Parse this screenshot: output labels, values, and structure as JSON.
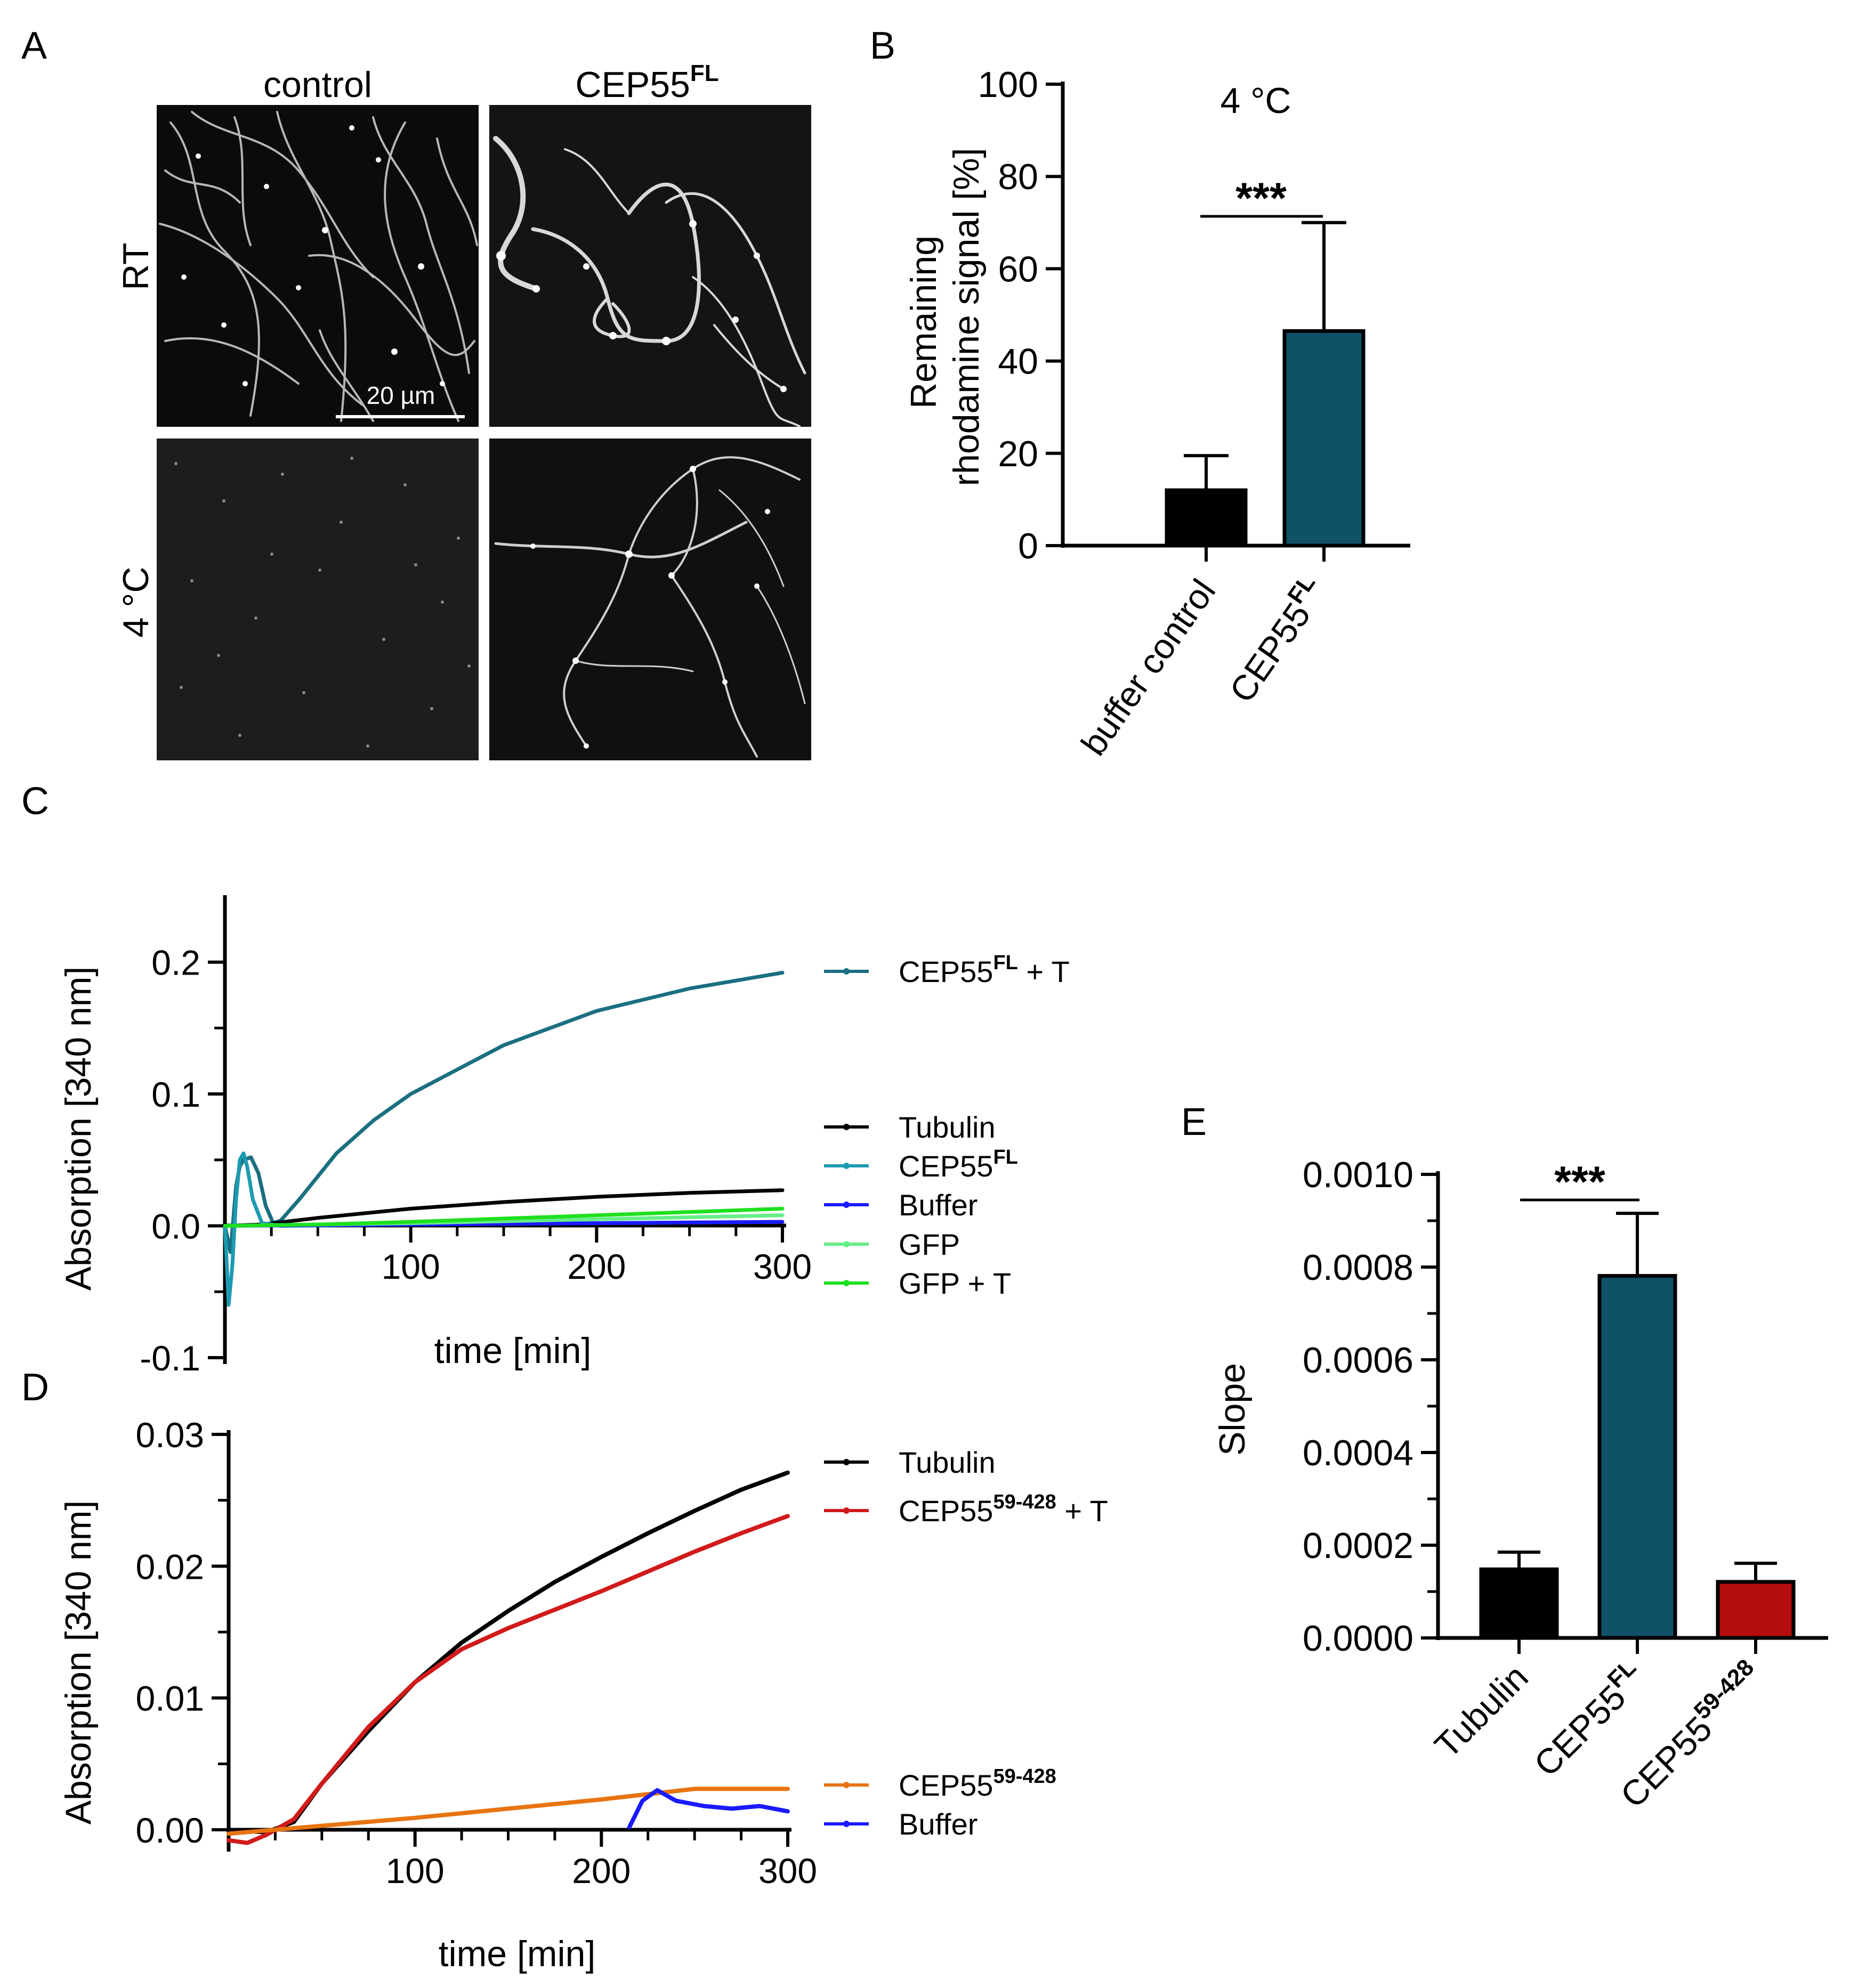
{
  "panels": {
    "A": {
      "letter": "A",
      "col_headers": [
        {
          "text": "control",
          "sup": ""
        },
        {
          "text": "CEP55",
          "sup": "FL"
        }
      ],
      "row_headers": [
        "RT",
        "4 °C"
      ],
      "scale_bar_label": "20 µm"
    },
    "B": {
      "letter": "B"
    },
    "C": {
      "letter": "C"
    },
    "D": {
      "letter": "D"
    },
    "E": {
      "letter": "E"
    }
  },
  "colors": {
    "teal": "#0f5166",
    "teal_line": "#1a6f80",
    "cyan_line": "#1c9bb0",
    "black": "#000000",
    "blue": "#1a1aff",
    "light_green": "#66ee88",
    "green": "#1fe01f",
    "red": "#d11a1a",
    "dark_red": "#b30d0d",
    "orange": "#e87410"
  },
  "chart_data": [
    {
      "id": "B",
      "type": "bar",
      "annotation": "4 °C",
      "ylabel": "Remaining rhodamine signal [%]",
      "ylabel_lines": [
        "Remaining",
        "rhodamine signal [%]"
      ],
      "ylim": [
        0,
        100
      ],
      "yticks": [
        "0",
        "20",
        "40",
        "60",
        "80",
        "100"
      ],
      "categories": [
        {
          "text": "buffer control",
          "sup": ""
        },
        {
          "text": "CEP55",
          "sup": "FL"
        }
      ],
      "values": [
        12,
        46.5
      ],
      "errors": [
        7.5,
        23.5
      ],
      "bar_colors": [
        "#000000",
        "#0f5166"
      ],
      "significance": "***"
    },
    {
      "id": "C",
      "type": "line",
      "xlabel": "time [min]",
      "ylabel": "Absorption [340 nm]",
      "xlim": [
        0,
        300
      ],
      "ylim": [
        -0.1,
        0.25
      ],
      "xticks": [
        "100",
        "200",
        "300"
      ],
      "yticks": [
        "-0.1",
        "0.0",
        "0.1",
        "0.2"
      ],
      "series": [
        {
          "name": "CEP55",
          "sup": "FL",
          "suffix": " + T",
          "color": "#1a6f80",
          "x": [
            0,
            3,
            6,
            8,
            10,
            14,
            18,
            22,
            26,
            30,
            40,
            60,
            80,
            100,
            150,
            200,
            250,
            300
          ],
          "y": [
            0,
            -0.02,
            0.03,
            0.045,
            0.05,
            0.052,
            0.04,
            0.015,
            0.002,
            0.004,
            0.02,
            0.055,
            0.08,
            0.1,
            0.137,
            0.163,
            0.18,
            0.192
          ]
        },
        {
          "name": "Tubulin",
          "sup": "",
          "suffix": "",
          "color": "#000000",
          "x": [
            0,
            20,
            50,
            100,
            150,
            200,
            250,
            300
          ],
          "y": [
            0,
            0.001,
            0.006,
            0.013,
            0.018,
            0.022,
            0.025,
            0.027
          ]
        },
        {
          "name": "CEP55",
          "sup": "FL",
          "suffix": "",
          "color": "#1c9bb0",
          "x": [
            0,
            2,
            4,
            6,
            8,
            10,
            12,
            15,
            20,
            30,
            100,
            200,
            300
          ],
          "y": [
            0,
            -0.06,
            -0.03,
            0.02,
            0.05,
            0.055,
            0.045,
            0.02,
            0.002,
            0.0,
            0.001,
            0.002,
            0.003
          ]
        },
        {
          "name": "Buffer",
          "sup": "",
          "suffix": "",
          "color": "#1a1aff",
          "x": [
            0,
            100,
            200,
            300
          ],
          "y": [
            0,
            0.001,
            0.002,
            0.003
          ]
        },
        {
          "name": "GFP",
          "sup": "",
          "suffix": "",
          "color": "#66ee88",
          "x": [
            0,
            100,
            200,
            300
          ],
          "y": [
            0,
            0.002,
            0.005,
            0.008
          ]
        },
        {
          "name": "GFP",
          "sup": "",
          "suffix": " + T",
          "color": "#1fe01f",
          "x": [
            0,
            50,
            100,
            200,
            300
          ],
          "y": [
            0,
            0.001,
            0.003,
            0.008,
            0.013
          ]
        }
      ]
    },
    {
      "id": "D",
      "type": "line",
      "xlabel": "time [min]",
      "ylabel": "Absorption [340 nm]",
      "xlim": [
        0,
        300
      ],
      "ylim": [
        0,
        0.03
      ],
      "xticks": [
        "100",
        "200",
        "300"
      ],
      "yticks": [
        "0.00",
        "0.01",
        "0.02",
        "0.03"
      ],
      "series": [
        {
          "name": "Tubulin",
          "sup": "",
          "suffix": "",
          "color": "#000000",
          "x": [
            0,
            20,
            35,
            50,
            75,
            100,
            125,
            150,
            175,
            200,
            225,
            250,
            275,
            300
          ],
          "y": [
            0.0,
            -0.0002,
            0.0006,
            0.0035,
            0.0075,
            0.0112,
            0.0142,
            0.0166,
            0.0188,
            0.0207,
            0.0225,
            0.0242,
            0.0258,
            0.0271
          ]
        },
        {
          "name": "CEP55",
          "sup": "59-428",
          "suffix": " + T",
          "color": "#d11a1a",
          "x": [
            0,
            10,
            20,
            35,
            50,
            75,
            100,
            125,
            150,
            175,
            200,
            225,
            250,
            275,
            300
          ],
          "y": [
            -0.0008,
            -0.001,
            -0.0004,
            0.0008,
            0.0035,
            0.0078,
            0.0112,
            0.0137,
            0.0153,
            0.0167,
            0.0181,
            0.0196,
            0.0211,
            0.0225,
            0.0238
          ]
        },
        {
          "name": "CEP55",
          "sup": "59-428",
          "suffix": "",
          "color": "#e87410",
          "x": [
            0,
            50,
            100,
            150,
            200,
            250,
            300
          ],
          "y": [
            -0.0003,
            0.0003,
            0.0009,
            0.0016,
            0.0023,
            0.0031,
            0.0031
          ]
        },
        {
          "name": "Buffer",
          "sup": "",
          "suffix": "",
          "color": "#1a1aff",
          "x": [
            215,
            222,
            230,
            240,
            255,
            270,
            285,
            300
          ],
          "y": [
            0.0002,
            0.0022,
            0.003,
            0.0022,
            0.0018,
            0.0016,
            0.0018,
            0.0014
          ]
        }
      ]
    },
    {
      "id": "E",
      "type": "bar",
      "ylabel": "Slope",
      "ylim": [
        0,
        0.001
      ],
      "yticks": [
        "0.0000",
        "0.0002",
        "0.0004",
        "0.0006",
        "0.0008",
        "0.0010"
      ],
      "categories": [
        {
          "text": "Tubulin",
          "sup": ""
        },
        {
          "text": "CEP55",
          "sup": "FL"
        },
        {
          "text": "CEP55",
          "sup": "59-428"
        }
      ],
      "values": [
        0.000148,
        0.000781,
        0.000121
      ],
      "errors": [
        3.7e-05,
        0.000135,
        4e-05
      ],
      "bar_colors": [
        "#000000",
        "#0f5166",
        "#b30d0d"
      ],
      "significance": "***"
    }
  ]
}
